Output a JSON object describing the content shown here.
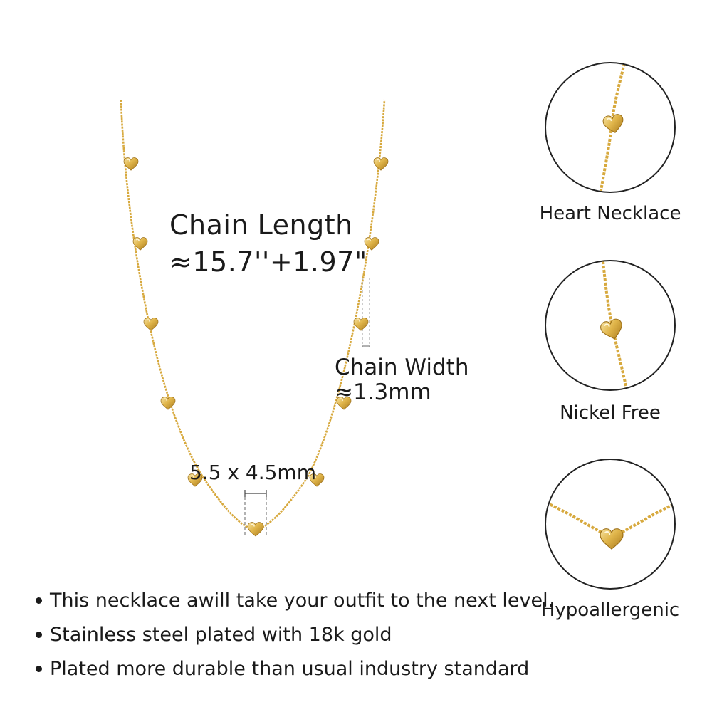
{
  "chain_length": {
    "title": "Chain Length",
    "value": "≈15.7''+1.97\""
  },
  "chain_width": {
    "title": "Chain Width",
    "value": "≈1.3mm"
  },
  "pendant_size": "5.5 x 4.5mm",
  "features": [
    {
      "label": "Heart Necklace",
      "icon": "heart-closeup-icon"
    },
    {
      "label": "Nickel Free",
      "icon": "heart-closeup-icon"
    },
    {
      "label": "Hypoallergenic",
      "icon": "heart-closeup-icon"
    }
  ],
  "bullets": [
    "This necklace awill take your outfit to the next level.",
    "Stainless steel plated with 18k gold",
    "Plated more durable than usual industry standard"
  ],
  "colors": {
    "gold": "#d9a93a",
    "gold_light": "#f3d98a",
    "gold_dark": "#a8781c",
    "text": "#1a1a1a"
  }
}
